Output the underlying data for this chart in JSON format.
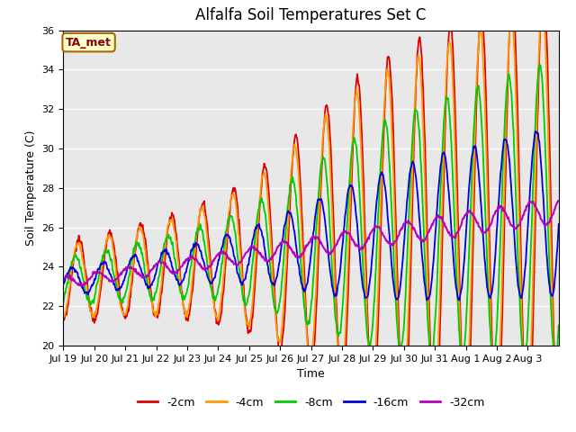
{
  "title": "Alfalfa Soil Temperatures Set C",
  "xlabel": "Time",
  "ylabel": "Soil Temperature (C)",
  "ylim": [
    20,
    36
  ],
  "annotation": "TA_met",
  "bg_color": "#e8e8e8",
  "legend": [
    {
      "label": "-2cm",
      "color": "#dd0000"
    },
    {
      "label": "-4cm",
      "color": "#ff9900"
    },
    {
      "label": "-8cm",
      "color": "#00cc00"
    },
    {
      "label": "-16cm",
      "color": "#0000dd"
    },
    {
      "label": "-32cm",
      "color": "#bb00bb"
    }
  ],
  "xtick_labels": [
    "Jul 19",
    "Jul 20",
    "Jul 21",
    "Jul 22",
    "Jul 23",
    "Jul 24",
    "Jul 25",
    "Jul 26",
    "Jul 27",
    "Jul 28",
    "Jul 29",
    "Jul 30",
    "Jul 31",
    "Aug 1",
    "Aug 2",
    "Aug 3"
  ],
  "n_days": 16,
  "pts_per_day": 48
}
